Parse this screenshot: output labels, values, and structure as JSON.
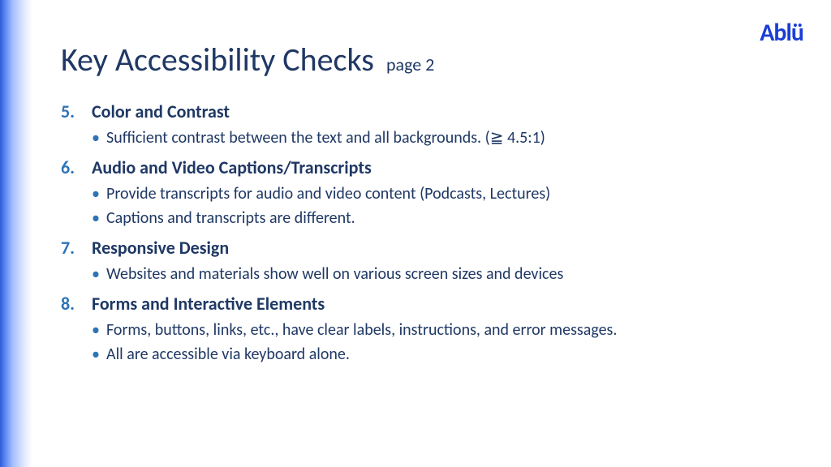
{
  "logo": "Ablü",
  "title_main": "Key Accessibility Checks",
  "title_sub": "page 2",
  "colors": {
    "title_color": "#1f3864",
    "number_color": "#2e74b5",
    "heading_color": "#1f3864",
    "body_color": "#1f3864",
    "bullet_color": "#2e74b5",
    "logo_color": "#1a3ed6",
    "gradient_start": "#2e5bd8",
    "background": "#ffffff"
  },
  "start_number": 5,
  "items": [
    {
      "num": "5.",
      "heading": "Color and Contrast",
      "bullets": [
        "Sufficient contrast between the text and all backgrounds. (≧ 4.5:1)"
      ]
    },
    {
      "num": "6.",
      "heading": "Audio and Video Captions/Transcripts",
      "bullets": [
        "Provide transcripts for audio and video content (Podcasts, Lectures)",
        "Captions and transcripts are different."
      ]
    },
    {
      "num": "7.",
      "heading": "Responsive Design",
      "bullets": [
        "Websites and materials show well on various screen sizes and devices"
      ]
    },
    {
      "num": "8.",
      "heading": "Forms and Interactive Elements",
      "bullets": [
        "Forms, buttons, links, etc., have clear labels, instructions, and error messages.",
        "All are accessible via keyboard alone."
      ]
    }
  ]
}
